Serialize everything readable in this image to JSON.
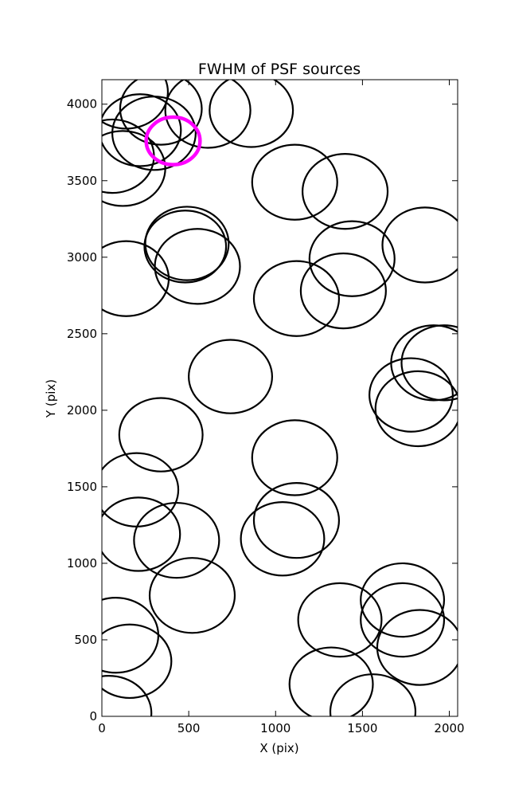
{
  "chart_data": {
    "type": "scatter",
    "title": "FWHM of PSF sources",
    "xlabel": "X (pix)",
    "ylabel": "Y (pix)",
    "xlim": [
      0,
      2048
    ],
    "ylim": [
      0,
      4160
    ],
    "grid": false,
    "legend": "none",
    "x_ticks": [
      0,
      500,
      1000,
      1500,
      2000
    ],
    "y_ticks": [
      0,
      500,
      1000,
      1500,
      2000,
      2500,
      3000,
      3500,
      4000
    ],
    "x_tick_labels": [
      "0",
      "500",
      "1000",
      "1500",
      "2000"
    ],
    "y_tick_labels": [
      "0",
      "500",
      "1000",
      "1500",
      "2000",
      "2500",
      "3000",
      "3500",
      "4000"
    ],
    "marker_color": "#000000",
    "highlight_color": "#ff00ff",
    "sources": [
      {
        "x": 140,
        "y": 4080,
        "r": 240
      },
      {
        "x": 340,
        "y": 3970,
        "r": 235
      },
      {
        "x": 610,
        "y": 3960,
        "r": 245
      },
      {
        "x": 860,
        "y": 3960,
        "r": 240
      },
      {
        "x": 220,
        "y": 3830,
        "r": 235
      },
      {
        "x": 300,
        "y": 3810,
        "r": 240
      },
      {
        "x": 60,
        "y": 3660,
        "r": 240
      },
      {
        "x": 120,
        "y": 3580,
        "r": 245
      },
      {
        "x": 1110,
        "y": 3490,
        "r": 245
      },
      {
        "x": 1400,
        "y": 3430,
        "r": 245
      },
      {
        "x": 490,
        "y": 3090,
        "r": 240
      },
      {
        "x": 480,
        "y": 3070,
        "r": 235
      },
      {
        "x": 550,
        "y": 2940,
        "r": 245
      },
      {
        "x": 140,
        "y": 2860,
        "r": 245
      },
      {
        "x": 1440,
        "y": 2990,
        "r": 245
      },
      {
        "x": 1860,
        "y": 3080,
        "r": 245
      },
      {
        "x": 1120,
        "y": 2730,
        "r": 245
      },
      {
        "x": 1390,
        "y": 2780,
        "r": 245
      },
      {
        "x": 1910,
        "y": 2310,
        "r": 245
      },
      {
        "x": 1970,
        "y": 2310,
        "r": 245
      },
      {
        "x": 740,
        "y": 2220,
        "r": 240
      },
      {
        "x": 1780,
        "y": 2100,
        "r": 240
      },
      {
        "x": 1820,
        "y": 2010,
        "r": 245
      },
      {
        "x": 340,
        "y": 1840,
        "r": 240
      },
      {
        "x": 1110,
        "y": 1690,
        "r": 245
      },
      {
        "x": 200,
        "y": 1480,
        "r": 240
      },
      {
        "x": 1120,
        "y": 1280,
        "r": 245
      },
      {
        "x": 1040,
        "y": 1160,
        "r": 240
      },
      {
        "x": 210,
        "y": 1190,
        "r": 240
      },
      {
        "x": 430,
        "y": 1150,
        "r": 245
      },
      {
        "x": 520,
        "y": 790,
        "r": 245
      },
      {
        "x": 1370,
        "y": 630,
        "r": 240
      },
      {
        "x": 1730,
        "y": 760,
        "r": 240
      },
      {
        "x": 1730,
        "y": 630,
        "r": 240
      },
      {
        "x": 1830,
        "y": 450,
        "r": 245
      },
      {
        "x": 80,
        "y": 530,
        "r": 245
      },
      {
        "x": 160,
        "y": 360,
        "r": 240
      },
      {
        "x": 1320,
        "y": 210,
        "r": 240
      },
      {
        "x": 1560,
        "y": 30,
        "r": 245
      },
      {
        "x": 40,
        "y": 20,
        "r": 245
      }
    ],
    "highlighted_sources": [
      {
        "x": 410,
        "y": 3760,
        "r": 155
      }
    ]
  }
}
